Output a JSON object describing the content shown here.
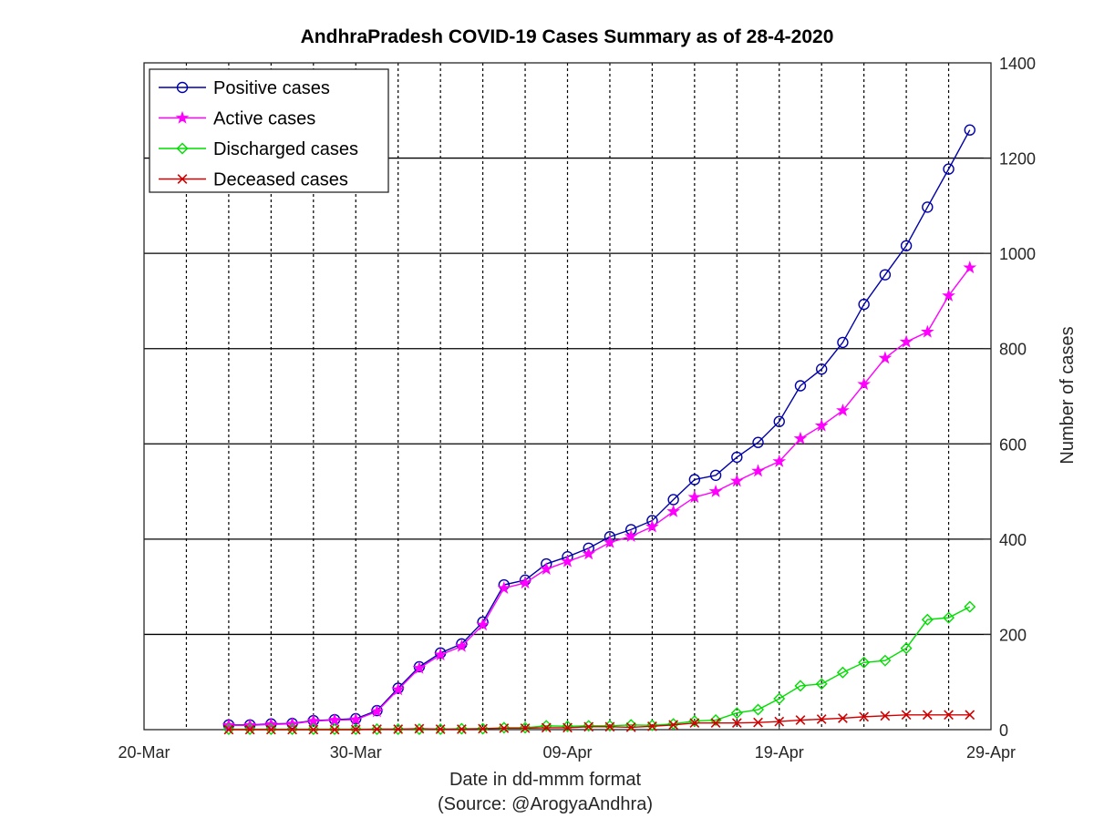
{
  "chart_data": {
    "type": "line",
    "title": "AndhraPradesh COVID-19 Cases Summary as of 28-4-2020",
    "xlabel": "Date in dd-mmm format",
    "xlabel2": "(Source: @ArogyaAndhra)",
    "ylabel": "Number of cases",
    "x_start": "20-Mar",
    "xlim": [
      "2020-03-20",
      "2020-04-29"
    ],
    "ylim": [
      0,
      1400
    ],
    "y_axis_location": "right",
    "x_ticks": [
      "20-Mar",
      "30-Mar",
      "09-Apr",
      "19-Apr",
      "29-Apr"
    ],
    "y_ticks": [
      "0",
      "200",
      "400",
      "600",
      "800",
      "1000",
      "1200",
      "1400"
    ],
    "grid": "x: dotted vertical lines every 2 days; y: solid horizontal lines every 200",
    "legend_position": "top-left",
    "x": [
      "2020-03-24",
      "2020-03-25",
      "2020-03-26",
      "2020-03-27",
      "2020-03-28",
      "2020-03-29",
      "2020-03-30",
      "2020-03-31",
      "2020-04-01",
      "2020-04-02",
      "2020-04-03",
      "2020-04-04",
      "2020-04-05",
      "2020-04-06",
      "2020-04-07",
      "2020-04-08",
      "2020-04-09",
      "2020-04-10",
      "2020-04-11",
      "2020-04-12",
      "2020-04-13",
      "2020-04-14",
      "2020-04-15",
      "2020-04-16",
      "2020-04-17",
      "2020-04-18",
      "2020-04-19",
      "2020-04-20",
      "2020-04-21",
      "2020-04-22",
      "2020-04-23",
      "2020-04-24",
      "2020-04-25",
      "2020-04-26",
      "2020-04-27",
      "2020-04-28"
    ],
    "series": [
      {
        "name": "Positive cases",
        "color": "#0000a8",
        "marker": "circle",
        "values": [
          10,
          10,
          12,
          13,
          19,
          21,
          23,
          40,
          87,
          132,
          161,
          180,
          226,
          304,
          314,
          348,
          363,
          381,
          405,
          420,
          439,
          483,
          525,
          534,
          572,
          603,
          647,
          722,
          757,
          813,
          893,
          955,
          1016,
          1097,
          1177,
          1259
        ]
      },
      {
        "name": "Active cases",
        "color": "#ff00ff",
        "marker": "star",
        "values": [
          9,
          9,
          11,
          12,
          18,
          20,
          21,
          38,
          84,
          129,
          157,
          175,
          220,
          297,
          308,
          337,
          353,
          369,
          393,
          406,
          426,
          458,
          488,
          500,
          522,
          543,
          563,
          611,
          638,
          670,
          725,
          780,
          814,
          835,
          911,
          970
        ]
      },
      {
        "name": "Discharged cases",
        "color": "#00dd00",
        "marker": "diamond",
        "values": [
          1,
          1,
          1,
          1,
          1,
          1,
          1,
          1,
          1,
          1,
          1,
          2,
          2,
          4,
          4,
          8,
          7,
          8,
          8,
          10,
          9,
          12,
          18,
          20,
          35,
          42,
          65,
          92,
          96,
          120,
          141,
          145,
          171,
          231,
          235,
          258
        ]
      },
      {
        "name": "Deceased cases",
        "color": "#d00000",
        "marker": "x",
        "values": [
          0,
          0,
          0,
          0,
          0,
          0,
          0,
          1,
          1,
          2,
          1,
          1,
          2,
          3,
          3,
          4,
          4,
          6,
          6,
          5,
          7,
          10,
          14,
          14,
          14,
          15,
          17,
          20,
          22,
          24,
          27,
          29,
          31,
          31,
          31,
          31
        ]
      }
    ]
  }
}
